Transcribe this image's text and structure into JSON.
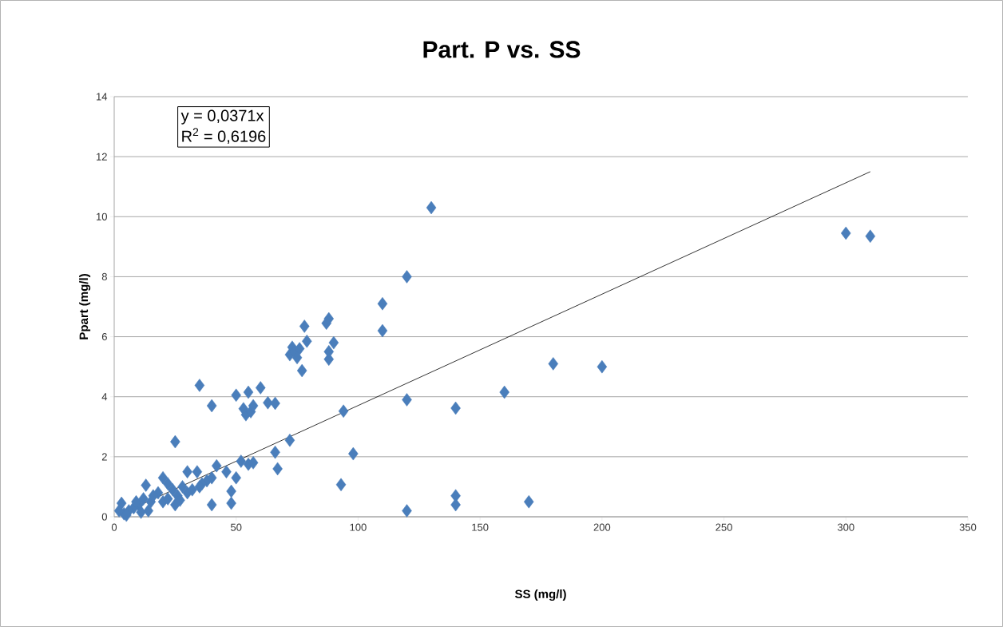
{
  "chart_data": {
    "type": "scatter",
    "title": "Part. P vs. SS",
    "xlabel": "SS (mg/l)",
    "ylabel": "Ppart (mg/l)",
    "annotations": [
      "y = 0,0371x",
      "R$^{2}$ = 0,6196"
    ],
    "xlim": [
      0,
      350
    ],
    "ylim": [
      0,
      14
    ],
    "xticks": [
      0,
      50,
      100,
      150,
      200,
      250,
      300,
      350
    ],
    "yticks": [
      0,
      2,
      4,
      6,
      8,
      10,
      12,
      14
    ],
    "grid": "y",
    "marker": "diamond",
    "series": [
      {
        "color": "#4a7ebb",
        "x": [
          130,
          120,
          110,
          110,
          300,
          310,
          180,
          200,
          160,
          140,
          120,
          94,
          98,
          93,
          120,
          140,
          140,
          170,
          72,
          67,
          66,
          35,
          40,
          25,
          50,
          60,
          55,
          53,
          54,
          56,
          57,
          63,
          66,
          72,
          73,
          74,
          75,
          76,
          77,
          78,
          79,
          87,
          88,
          88,
          88,
          90,
          55,
          57,
          52,
          50,
          48,
          48,
          40,
          46,
          42,
          38,
          36,
          34,
          30,
          28,
          26,
          24,
          22,
          20,
          18,
          15,
          13,
          12,
          10,
          8,
          6,
          4,
          3,
          2,
          5,
          14,
          20,
          25,
          30,
          32,
          35,
          40,
          16,
          22,
          9,
          11,
          27
        ],
        "values": [
          10.3,
          8.0,
          7.1,
          6.2,
          9.45,
          9.35,
          5.1,
          5.0,
          4.15,
          3.62,
          3.9,
          3.52,
          2.1,
          1.07,
          0.2,
          0.7,
          0.4,
          0.5,
          2.55,
          1.6,
          2.15,
          4.38,
          3.7,
          2.5,
          4.05,
          4.3,
          4.15,
          3.6,
          3.4,
          3.5,
          3.7,
          3.8,
          3.78,
          5.4,
          5.65,
          5.5,
          5.3,
          5.6,
          4.87,
          6.35,
          5.85,
          6.45,
          6.6,
          5.25,
          5.5,
          5.8,
          1.75,
          1.8,
          1.85,
          1.3,
          0.85,
          0.45,
          0.4,
          1.5,
          1.7,
          1.2,
          1.1,
          1.5,
          1.5,
          1.0,
          0.7,
          0.9,
          1.1,
          1.3,
          0.8,
          0.5,
          1.05,
          0.6,
          0.4,
          0.3,
          0.2,
          0.1,
          0.45,
          0.2,
          0.05,
          0.2,
          0.5,
          0.4,
          0.8,
          0.9,
          1.0,
          1.3,
          0.7,
          0.6,
          0.5,
          0.15,
          0.55
        ]
      },
      {
        "type": "line",
        "color": "#000000",
        "marker": "none",
        "x": [
          2,
          310
        ],
        "values": [
          0.07,
          11.5
        ]
      }
    ]
  }
}
